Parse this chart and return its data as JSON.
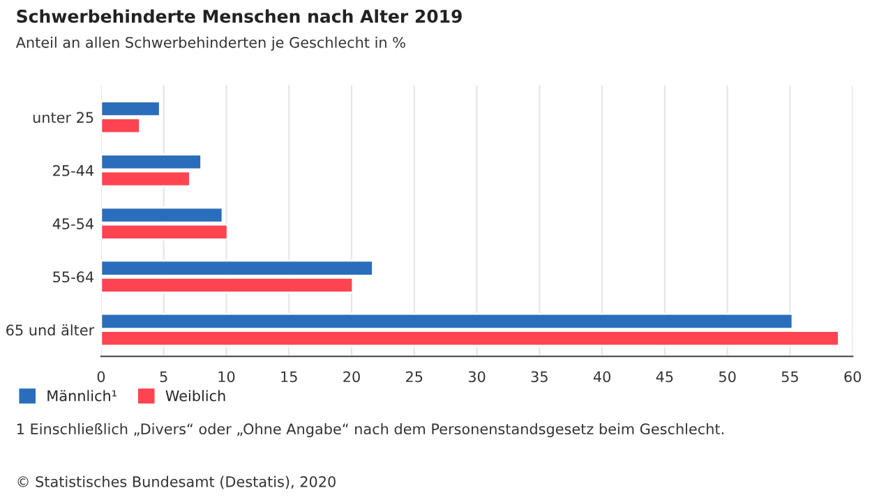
{
  "chart_data": {
    "type": "bar",
    "orientation": "horizontal",
    "title": "Schwerbehinderte Menschen nach Alter 2019",
    "subtitle": "Anteil an allen Schwerbehinderten je Geschlecht in %",
    "categories": [
      "unter 25",
      "25-44",
      "45-54",
      "55-64",
      "65 und älter"
    ],
    "series": [
      {
        "name": "Männlich¹",
        "color": "#2a6ebb",
        "values": [
          4.7,
          8.0,
          9.7,
          21.7,
          55.2
        ]
      },
      {
        "name": "Weiblich",
        "color": "#ff4451",
        "values": [
          3.1,
          7.1,
          10.1,
          20.1,
          58.9
        ]
      }
    ],
    "xlim": [
      0,
      60
    ],
    "xticks": [
      0,
      5,
      10,
      15,
      20,
      25,
      30,
      35,
      40,
      45,
      50,
      55,
      60
    ],
    "grid": "x",
    "legend": "bottom left",
    "annotations": [
      "1 Einschließlich „Divers“ oder „Ohne Angabe“ nach dem Personenstandsgesetz beim Geschlecht.",
      "© Statistisches Bundesamt (Destatis), 2020"
    ]
  }
}
